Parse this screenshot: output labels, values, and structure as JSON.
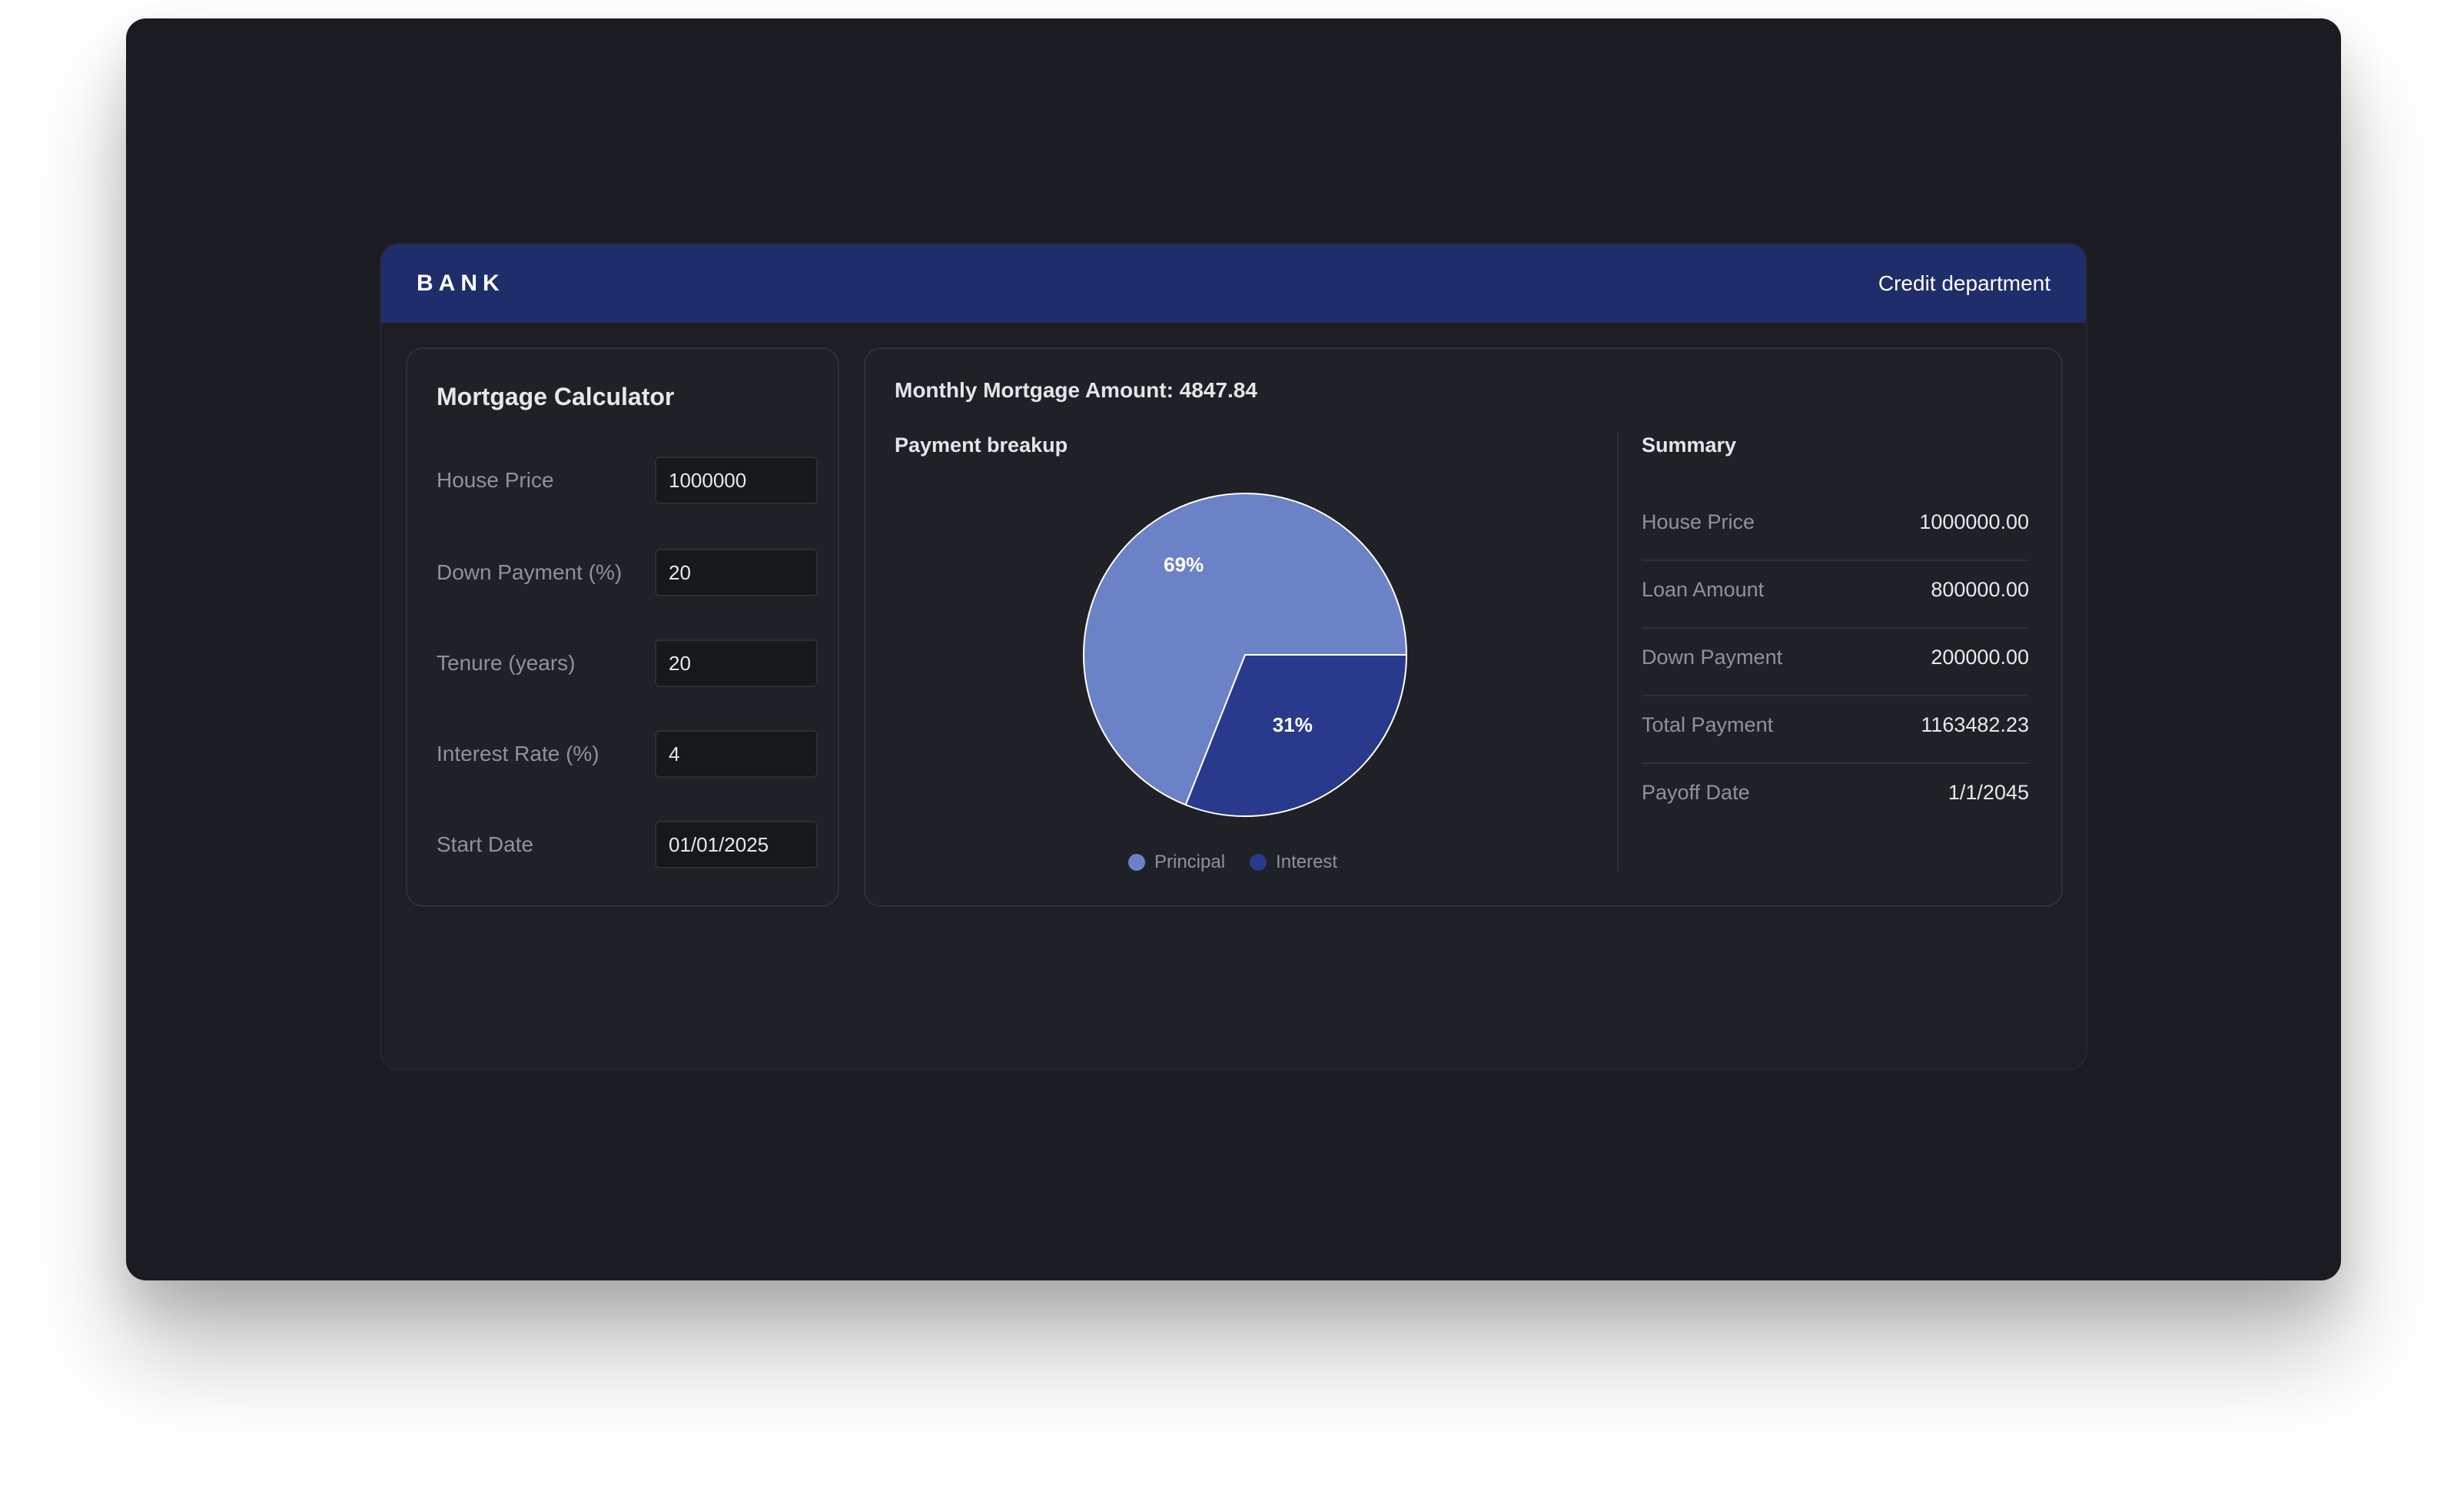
{
  "header": {
    "brand": "BANK",
    "department": "Credit department"
  },
  "calculator": {
    "title": "Mortgage Calculator",
    "fields": [
      {
        "label": "House Price",
        "value": "1000000"
      },
      {
        "label": "Down Payment (%)",
        "value": "20"
      },
      {
        "label": "Tenure (years)",
        "value": "20"
      },
      {
        "label": "Interest Rate (%)",
        "value": "4"
      },
      {
        "label": "Start Date",
        "value": "01/01/2025"
      }
    ]
  },
  "results": {
    "monthly": "Monthly Mortgage Amount: 4847.84",
    "breakup_title": "Payment breakup",
    "summary_title": "Summary",
    "summary": [
      {
        "label": "House Price",
        "value": "1000000.00"
      },
      {
        "label": "Loan Amount",
        "value": "800000.00"
      },
      {
        "label": "Down Payment",
        "value": "200000.00"
      },
      {
        "label": "Total Payment",
        "value": "1163482.23"
      },
      {
        "label": "Payoff Date",
        "value": "1/1/2045"
      }
    ]
  },
  "colors": {
    "principal": "#6b82c7",
    "interest": "#293a8c",
    "header": "#1f2d6b"
  },
  "chart_data": {
    "type": "pie",
    "labels": [
      "Principal",
      "Interest"
    ],
    "values": [
      69,
      31
    ],
    "value_labels": [
      "69%",
      "31%"
    ],
    "legend": "bottom"
  }
}
